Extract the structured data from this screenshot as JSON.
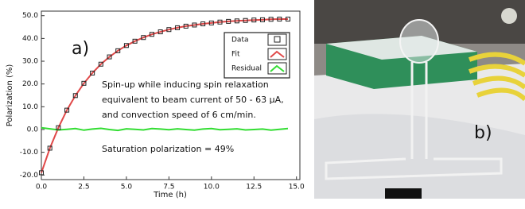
{
  "chart_data": {
    "type": "line",
    "panel_label": "a)",
    "x_label": "Time (h)",
    "y_label": "Polarization (%)",
    "annotation_lines": [
      "Spin-up while inducing spin relaxation",
      "equivalent to beam current of 50 - 63 μA,",
      "and convection speed of 6 cm/min."
    ],
    "saturation_note": "Saturation polarization = 49%",
    "x": [
      0,
      0.5,
      1,
      1.5,
      2,
      2.5,
      3,
      3.5,
      4,
      4.5,
      5,
      5.5,
      6,
      6.5,
      7,
      7.5,
      8,
      8.5,
      9,
      9.5,
      10,
      10.5,
      11,
      11.5,
      12,
      12.5,
      13,
      13.5,
      14,
      14.5
    ],
    "series": [
      {
        "name": "Data",
        "color": "#222222",
        "style": "markers",
        "values": [
          -19,
          -8.2,
          0.8,
          8.5,
          14.9,
          20.3,
          24.8,
          28.7,
          31.9,
          34.6,
          36.9,
          38.8,
          40.4,
          41.8,
          42.9,
          43.9,
          44.7,
          45.4,
          45.9,
          46.4,
          46.8,
          47.2,
          47.5,
          47.7,
          47.9,
          48.1,
          48.2,
          48.4,
          48.5,
          48.5
        ]
      },
      {
        "name": "Fit",
        "color": "#e04848",
        "style": "line",
        "values": [
          -19,
          -8.2,
          0.8,
          8.5,
          14.9,
          20.3,
          24.8,
          28.7,
          31.9,
          34.6,
          36.9,
          38.8,
          40.4,
          41.8,
          42.9,
          43.9,
          44.7,
          45.4,
          45.9,
          46.4,
          46.8,
          47.2,
          47.5,
          47.7,
          47.9,
          48.1,
          48.2,
          48.4,
          48.5,
          48.5
        ]
      },
      {
        "name": "Residual",
        "color": "#33dd33",
        "style": "line",
        "values": [
          0.8,
          0.3,
          -0.2,
          0.1,
          0.4,
          -0.3,
          0.2,
          0.5,
          0,
          -0.4,
          0.3,
          0.1,
          -0.2,
          0.4,
          0.2,
          -0.1,
          0.3,
          0,
          -0.3,
          0.2,
          0.4,
          -0.1,
          0.1,
          0.3,
          -0.2,
          0,
          0.2,
          -0.3,
          0.1,
          0.4
        ]
      }
    ],
    "xlim": [
      0,
      15.2
    ],
    "ylim": [
      -22,
      52
    ],
    "xticks": [
      {
        "value": 0,
        "label": "0.0"
      },
      {
        "value": 2.5,
        "label": "2.5"
      },
      {
        "value": 5,
        "label": "5.0"
      },
      {
        "value": 7.5,
        "label": "7.5"
      },
      {
        "value": 10,
        "label": "10.0"
      },
      {
        "value": 12.5,
        "label": "12.5"
      },
      {
        "value": 15,
        "label": "15.0"
      }
    ],
    "yticks": [
      {
        "value": -20,
        "label": "-20.0"
      },
      {
        "value": -10,
        "label": "-10.0"
      },
      {
        "value": 0,
        "label": "0.0"
      },
      {
        "value": 10,
        "label": "10.0"
      },
      {
        "value": 20,
        "label": "20.0"
      },
      {
        "value": 30,
        "label": "30.0"
      },
      {
        "value": 40,
        "label": "40.0"
      },
      {
        "value": 50,
        "label": "50.0"
      }
    ],
    "grid": false,
    "legend": "upper right"
  },
  "photo": {
    "label": "b)"
  }
}
